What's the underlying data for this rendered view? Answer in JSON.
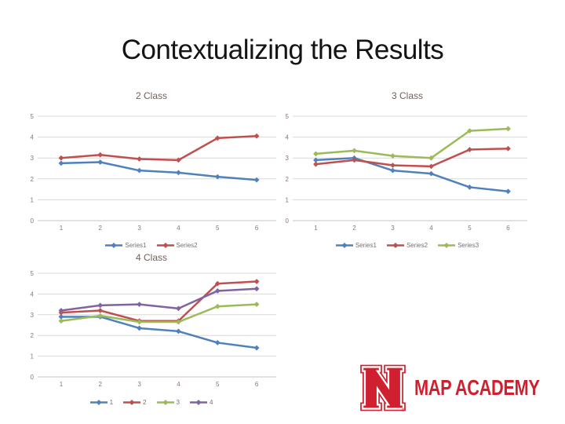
{
  "slide": {
    "title": "Contextualizing the Results"
  },
  "chart_data": [
    {
      "type": "line",
      "title": "2 Class",
      "categories": [
        "1",
        "2",
        "3",
        "4",
        "5",
        "6"
      ],
      "ylim": [
        0,
        5
      ],
      "yticks": [
        0,
        1,
        2,
        3,
        4,
        5
      ],
      "grid": true,
      "legend_position": "bottom",
      "series": [
        {
          "name": "Series1",
          "color": "#4F81BD",
          "values": [
            2.75,
            2.8,
            2.4,
            2.3,
            2.1,
            1.95
          ]
        },
        {
          "name": "Series2",
          "color": "#C0504D",
          "values": [
            3.0,
            3.15,
            2.95,
            2.9,
            3.95,
            4.05
          ]
        }
      ]
    },
    {
      "type": "line",
      "title": "3 Class",
      "categories": [
        "1",
        "2",
        "3",
        "4",
        "5",
        "6"
      ],
      "ylim": [
        0,
        5
      ],
      "yticks": [
        0,
        1,
        2,
        3,
        4,
        5
      ],
      "grid": true,
      "legend_position": "bottom",
      "series": [
        {
          "name": "Series1",
          "color": "#4F81BD",
          "values": [
            2.9,
            3.0,
            2.4,
            2.25,
            1.6,
            1.4
          ]
        },
        {
          "name": "Series2",
          "color": "#C0504D",
          "values": [
            2.7,
            2.9,
            2.65,
            2.6,
            3.4,
            3.45
          ]
        },
        {
          "name": "Series3",
          "color": "#9BBB59",
          "values": [
            3.2,
            3.35,
            3.1,
            3.0,
            4.3,
            4.4
          ]
        }
      ]
    },
    {
      "type": "line",
      "title": "4 Class",
      "categories": [
        "1",
        "2",
        "3",
        "4",
        "5",
        "6"
      ],
      "ylim": [
        0,
        5
      ],
      "yticks": [
        0,
        1,
        2,
        3,
        4,
        5
      ],
      "grid": true,
      "legend_position": "bottom",
      "series": [
        {
          "name": "1",
          "color": "#4F81BD",
          "values": [
            2.9,
            2.9,
            2.35,
            2.2,
            1.65,
            1.4
          ]
        },
        {
          "name": "2",
          "color": "#C0504D",
          "values": [
            3.1,
            3.2,
            2.7,
            2.7,
            4.5,
            4.6
          ]
        },
        {
          "name": "3",
          "color": "#9BBB59",
          "values": [
            2.7,
            2.95,
            2.65,
            2.65,
            3.4,
            3.5
          ]
        },
        {
          "name": "4",
          "color": "#8064A2",
          "values": [
            3.2,
            3.45,
            3.5,
            3.3,
            4.15,
            4.25
          ]
        }
      ]
    }
  ],
  "logo": {
    "letter": "N",
    "brand": "MAP ACADEMY",
    "registered": "®",
    "color": "#d0202f"
  },
  "style": {
    "gridline_color": "#d9d9d9",
    "axis_color": "#c6c6c6",
    "tick_label_color": "#8a776d",
    "chart_title_color": "#746159"
  }
}
